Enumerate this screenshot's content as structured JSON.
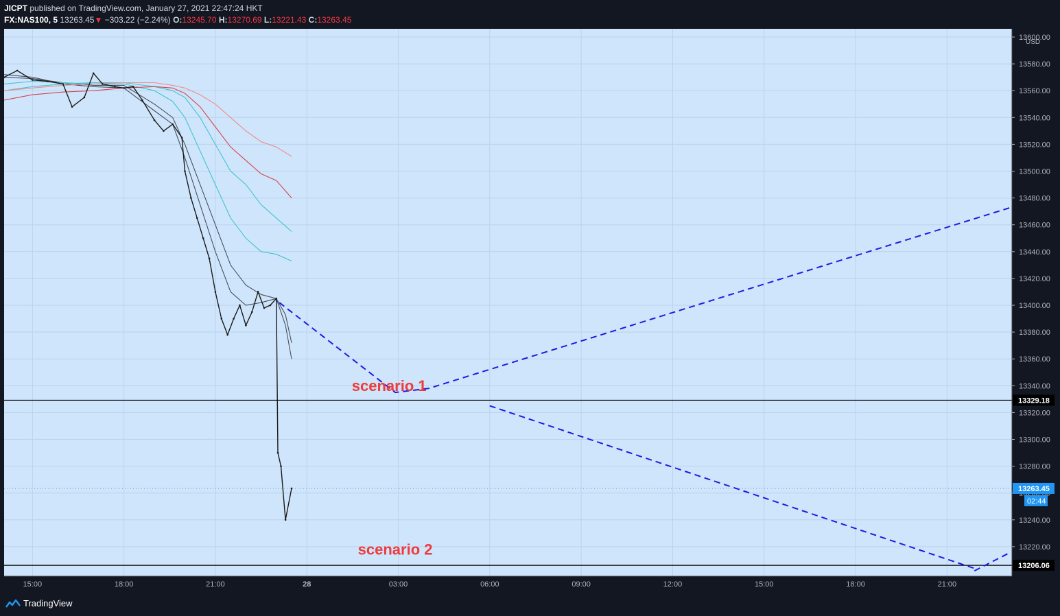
{
  "header": {
    "publisher": "JICPT",
    "published_text": "published on TradingView.com, January 27, 2021 22:47:24 HKT",
    "symbol": "FX:NAS100, 5",
    "last_price": "13263.45",
    "change_arrow": "▼",
    "change": "−303.22 (−2.24%)",
    "o_label": "O:",
    "o_value": "13245.70",
    "h_label": "H:",
    "h_value": "13270.69",
    "l_label": "L:",
    "l_value": "13221.43",
    "c_label": "C:",
    "c_value": "13263.45"
  },
  "footer": {
    "brand": "TradingView"
  },
  "colors": {
    "background": "#131722",
    "plot": "#cfe5fb",
    "grid": "#b9d3ee",
    "arrow": "#1b1be6",
    "annotation": "#ef3b3b",
    "ema_dark": "#4a4f5e",
    "ema_teal": "#3fc4cf",
    "ema_red": "#d9434c",
    "ema_pink": "#f08c8c",
    "price_label": "#2196f3"
  },
  "chart_data": {
    "type": "line",
    "title": "",
    "currency": "USD",
    "ylim": [
      13200,
      13600
    ],
    "y_ticks": [
      "13600.00",
      "13580.00",
      "13560.00",
      "13540.00",
      "13520.00",
      "13500.00",
      "13480.00",
      "13460.00",
      "13440.00",
      "13420.00",
      "13400.00",
      "13380.00",
      "13360.00",
      "13340.00",
      "13320.00",
      "13300.00",
      "13280.00",
      "13260.00",
      "13240.00",
      "13220.00"
    ],
    "x_ticks": [
      {
        "label": "15:00",
        "hours": 0
      },
      {
        "label": "18:00",
        "hours": 3
      },
      {
        "label": "21:00",
        "hours": 6
      },
      {
        "label": "28",
        "hours": 9,
        "bold": true
      },
      {
        "label": "03:00",
        "hours": 12
      },
      {
        "label": "06:00",
        "hours": 15
      },
      {
        "label": "09:00",
        "hours": 18
      },
      {
        "label": "12:00",
        "hours": 21
      },
      {
        "label": "15:00",
        "hours": 24
      },
      {
        "label": "18:00",
        "hours": 27
      },
      {
        "label": "21:00",
        "hours": 30
      }
    ],
    "x_range_hours": [
      -0.93,
      32.13
    ],
    "price_series": {
      "name": "",
      "points": [
        [
          -0.93,
          13570
        ],
        [
          -0.5,
          13575
        ],
        [
          0,
          13568
        ],
        [
          0.5,
          13567
        ],
        [
          1,
          13565
        ],
        [
          1.3,
          13548
        ],
        [
          1.7,
          13555
        ],
        [
          2,
          13573
        ],
        [
          2.3,
          13565
        ],
        [
          2.7,
          13563
        ],
        [
          3,
          13562
        ],
        [
          3.3,
          13563
        ],
        [
          3.6,
          13553
        ],
        [
          4,
          13538
        ],
        [
          4.3,
          13530
        ],
        [
          4.6,
          13535
        ],
        [
          4.9,
          13525
        ],
        [
          5.0,
          13500
        ],
        [
          5.2,
          13480
        ],
        [
          5.4,
          13465
        ],
        [
          5.6,
          13450
        ],
        [
          5.8,
          13435
        ],
        [
          6.0,
          13410
        ],
        [
          6.2,
          13390
        ],
        [
          6.4,
          13378
        ],
        [
          6.6,
          13390
        ],
        [
          6.8,
          13400
        ],
        [
          7.0,
          13385
        ],
        [
          7.2,
          13395
        ],
        [
          7.4,
          13410
        ],
        [
          7.6,
          13398
        ],
        [
          7.8,
          13400
        ],
        [
          8.0,
          13405
        ],
        [
          8.05,
          13290
        ],
        [
          8.15,
          13280
        ],
        [
          8.3,
          13240
        ],
        [
          8.5,
          13263.45
        ]
      ]
    },
    "ema_lines": [
      {
        "name": "",
        "color_key": "ema_dark",
        "points": [
          [
            -0.93,
            13572
          ],
          [
            0,
            13570
          ],
          [
            1,
            13565
          ],
          [
            2,
            13563
          ],
          [
            3,
            13562
          ],
          [
            4,
            13545
          ],
          [
            4.6,
            13535
          ],
          [
            5,
            13510
          ],
          [
            5.5,
            13475
          ],
          [
            6,
            13440
          ],
          [
            6.5,
            13410
          ],
          [
            7,
            13400
          ],
          [
            7.5,
            13402
          ],
          [
            8,
            13405
          ],
          [
            8.3,
            13385
          ],
          [
            8.5,
            13360
          ]
        ]
      },
      {
        "name": "",
        "color_key": "ema_dark",
        "points": [
          [
            -0.93,
            13570
          ],
          [
            0,
            13569
          ],
          [
            1,
            13566
          ],
          [
            2,
            13564
          ],
          [
            3,
            13564
          ],
          [
            4,
            13550
          ],
          [
            4.6,
            13540
          ],
          [
            5,
            13520
          ],
          [
            5.5,
            13490
          ],
          [
            6,
            13460
          ],
          [
            6.5,
            13430
          ],
          [
            7,
            13415
          ],
          [
            7.5,
            13408
          ],
          [
            8,
            13405
          ],
          [
            8.3,
            13393
          ],
          [
            8.5,
            13372
          ]
        ]
      },
      {
        "name": "",
        "color_key": "ema_teal",
        "points": [
          [
            -0.93,
            13565
          ],
          [
            0,
            13567
          ],
          [
            1,
            13566
          ],
          [
            2,
            13565
          ],
          [
            3,
            13565
          ],
          [
            4,
            13560
          ],
          [
            4.6,
            13552
          ],
          [
            5,
            13540
          ],
          [
            5.5,
            13515
          ],
          [
            6,
            13490
          ],
          [
            6.5,
            13465
          ],
          [
            7,
            13450
          ],
          [
            7.5,
            13440
          ],
          [
            8,
            13438
          ],
          [
            8.5,
            13433
          ]
        ]
      },
      {
        "name": "",
        "color_key": "ema_teal",
        "points": [
          [
            -0.93,
            13560
          ],
          [
            0,
            13563
          ],
          [
            1,
            13565
          ],
          [
            2,
            13566
          ],
          [
            3,
            13566
          ],
          [
            4,
            13563
          ],
          [
            4.6,
            13560
          ],
          [
            5,
            13555
          ],
          [
            5.5,
            13540
          ],
          [
            6,
            13520
          ],
          [
            6.5,
            13500
          ],
          [
            7,
            13490
          ],
          [
            7.5,
            13475
          ],
          [
            8,
            13465
          ],
          [
            8.5,
            13455
          ]
        ]
      },
      {
        "name": "",
        "color_key": "ema_red",
        "points": [
          [
            -0.93,
            13553
          ],
          [
            0,
            13557
          ],
          [
            1,
            13559
          ],
          [
            2,
            13560
          ],
          [
            3,
            13562
          ],
          [
            4,
            13563
          ],
          [
            4.6,
            13562
          ],
          [
            5,
            13558
          ],
          [
            5.5,
            13548
          ],
          [
            6,
            13533
          ],
          [
            6.5,
            13518
          ],
          [
            7,
            13508
          ],
          [
            7.5,
            13498
          ],
          [
            8,
            13493
          ],
          [
            8.5,
            13480
          ]
        ]
      },
      {
        "name": "",
        "color_key": "ema_pink",
        "points": [
          [
            -0.93,
            13560
          ],
          [
            0,
            13562
          ],
          [
            1,
            13564
          ],
          [
            2,
            13565
          ],
          [
            3,
            13566
          ],
          [
            4,
            13566
          ],
          [
            4.6,
            13564
          ],
          [
            5,
            13562
          ],
          [
            5.5,
            13557
          ],
          [
            6,
            13550
          ],
          [
            6.5,
            13540
          ],
          [
            7,
            13530
          ],
          [
            7.5,
            13522
          ],
          [
            8,
            13518
          ],
          [
            8.5,
            13511
          ]
        ]
      }
    ],
    "horizontal_lines": [
      {
        "value": 13329.18,
        "label": "13329.18",
        "style": "solid"
      },
      {
        "value": 13206.06,
        "label": "13206.06",
        "style": "solid"
      },
      {
        "value": 13263.45,
        "label": "13263.45",
        "style": "dotted",
        "countdown": "02:44"
      }
    ],
    "projection_paths": [
      {
        "points": [
          [
            8.1,
            13402
          ],
          [
            11.9,
            13335
          ],
          [
            13,
            13338
          ],
          [
            32.1,
            13473
          ]
        ],
        "tick_at": 1
      },
      {
        "points": [
          [
            15.0,
            13325
          ],
          [
            31.0,
            13203
          ]
        ],
        "tick_at": 1
      },
      {
        "points": [
          [
            30.9,
            13202
          ],
          [
            32.1,
            13216
          ]
        ],
        "tick_at": -1
      }
    ],
    "annotations": [
      {
        "text": "scenario 1",
        "x_hours": 11.7,
        "y": 13336
      },
      {
        "text": "scenario 2",
        "x_hours": 11.9,
        "y": 13214
      }
    ]
  }
}
